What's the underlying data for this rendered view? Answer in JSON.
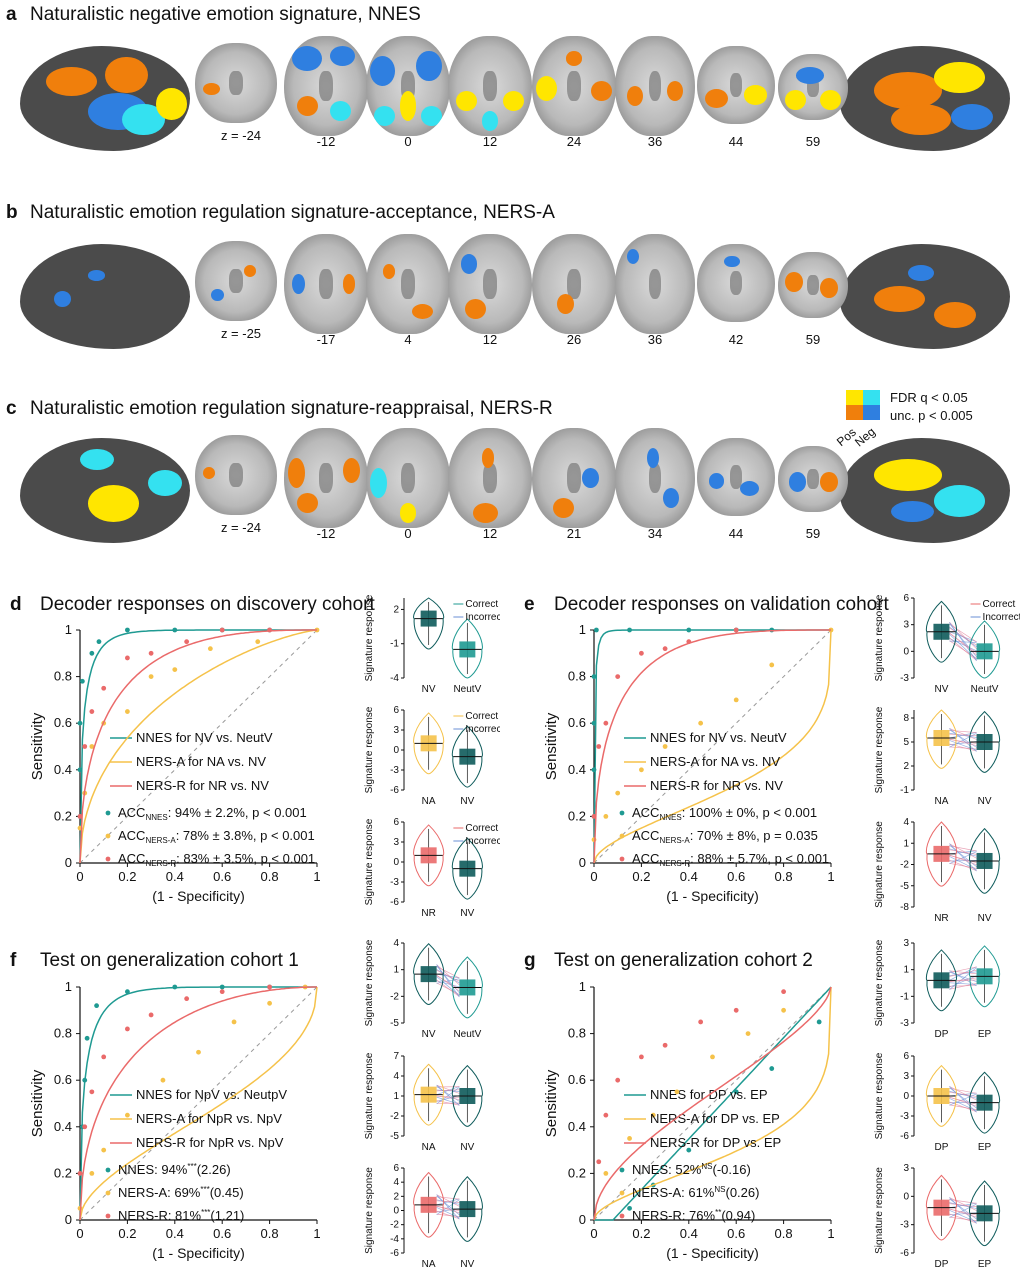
{
  "panels": {
    "a": {
      "label": "a",
      "title": "Naturalistic negative emotion signature, NNES",
      "z": [
        "z = -24",
        "-12",
        "0",
        "12",
        "24",
        "36",
        "44",
        "59"
      ]
    },
    "b": {
      "label": "b",
      "title": "Naturalistic emotion regulation signature-acceptance, NERS-A",
      "z": [
        "z = -25",
        "-17",
        "4",
        "12",
        "26",
        "36",
        "42",
        "59"
      ]
    },
    "c": {
      "label": "c",
      "title": "Naturalistic emotion regulation signature-reappraisal, NERS-R",
      "z": [
        "z = -24",
        "-12",
        "0",
        "12",
        "21",
        "34",
        "44",
        "59"
      ]
    },
    "d": {
      "label": "d",
      "title": "Decoder responses on discovery cohort"
    },
    "e": {
      "label": "e",
      "title": "Decoder responses on validation cohort"
    },
    "f": {
      "label": "f",
      "title": "Test on generalization cohort 1"
    },
    "g": {
      "label": "g",
      "title": "Test on generalization cohort 2"
    }
  },
  "colorbar": {
    "fdr": "FDR q < 0.05",
    "unc": "unc. p < 0.005",
    "pos": "Pos",
    "neg": "Neg",
    "colors": {
      "pos_fdr": "#ffe600",
      "pos_unc": "#f07f0c",
      "neg_fdr": "#34e1f0",
      "neg_unc": "#2f7fe0"
    }
  },
  "colors": {
    "nnes": "#1f9a92",
    "nersa": "#f5c24a",
    "nersr": "#ea6a6a",
    "dark_teal": "#0e5b5b"
  },
  "chart_data": [
    {
      "id": "d",
      "type": "line",
      "xlabel": "(1 - Specificity)",
      "ylabel": "Sensitivity",
      "xlim": [
        0,
        1
      ],
      "ylim": [
        0,
        1
      ],
      "xticks": [
        "0",
        "0.2",
        "0.4",
        "0.6",
        "0.8",
        "1"
      ],
      "yticks": [
        "0",
        "0.2",
        "0.4",
        "0.6",
        "0.8",
        "1"
      ],
      "series": [
        {
          "name": "NNES for NV vs. NeutV",
          "k": 0.015,
          "points": [
            [
              0,
              0.2
            ],
            [
              0,
              0.4
            ],
            [
              0,
              0.6
            ],
            [
              0.01,
              0.78
            ],
            [
              0.05,
              0.9
            ],
            [
              0.08,
              0.95
            ],
            [
              0.2,
              1
            ],
            [
              0.4,
              1
            ],
            [
              0.6,
              1
            ],
            [
              0.8,
              1
            ]
          ]
        },
        {
          "name": "NERS-A for NA vs. NV",
          "k": 0.12,
          "points": [
            [
              0,
              0.15
            ],
            [
              0.02,
              0.3
            ],
            [
              0.05,
              0.5
            ],
            [
              0.1,
              0.6
            ],
            [
              0.2,
              0.65
            ],
            [
              0.3,
              0.8
            ],
            [
              0.4,
              0.83
            ],
            [
              0.55,
              0.92
            ],
            [
              0.75,
              0.95
            ],
            [
              1,
              1
            ]
          ]
        },
        {
          "name": "NERS-R for NR vs. NV",
          "k": 0.06,
          "points": [
            [
              0,
              0.2
            ],
            [
              0.02,
              0.5
            ],
            [
              0.05,
              0.65
            ],
            [
              0.1,
              0.75
            ],
            [
              0.2,
              0.88
            ],
            [
              0.3,
              0.9
            ],
            [
              0.45,
              0.95
            ],
            [
              0.6,
              1
            ],
            [
              0.8,
              1
            ]
          ]
        }
      ],
      "stats": [
        {
          "pre": "ACC",
          "sub": "NNES",
          "post": ": 94% ± 2.2%, p < 0.001"
        },
        {
          "pre": "ACC",
          "sub": "NERS-A",
          "post": ": 78% ± 3.8%, p < 0.001"
        },
        {
          "pre": "ACC",
          "sub": "NERS-R",
          "post": ": 83% ± 3.5%, p < 0.001"
        }
      ]
    },
    {
      "id": "e",
      "type": "line",
      "xlabel": "(1 - Specificity)",
      "ylabel": "Sensitivity",
      "xlim": [
        0,
        1
      ],
      "ylim": [
        0,
        1
      ],
      "xticks": [
        "0",
        "0.2",
        "0.4",
        "0.6",
        "0.8",
        "1"
      ],
      "yticks": [
        "0",
        "0.2",
        "0.4",
        "0.6",
        "0.8",
        "1"
      ],
      "series": [
        {
          "name": "NNES for NV vs. NeutV",
          "k": 0.001,
          "points": [
            [
              0,
              0.2
            ],
            [
              0,
              0.4
            ],
            [
              0,
              0.6
            ],
            [
              0,
              0.8
            ],
            [
              0.01,
              1
            ],
            [
              0.15,
              1
            ],
            [
              0.4,
              1
            ],
            [
              0.6,
              1
            ],
            [
              0.75,
              1
            ]
          ]
        },
        {
          "name": "NERS-A for NA vs. NV",
          "k": 0.6,
          "points": [
            [
              0,
              0.1
            ],
            [
              0.05,
              0.2
            ],
            [
              0.1,
              0.3
            ],
            [
              0.2,
              0.4
            ],
            [
              0.3,
              0.5
            ],
            [
              0.45,
              0.6
            ],
            [
              0.6,
              0.7
            ],
            [
              0.75,
              0.85
            ],
            [
              1,
              1
            ]
          ]
        },
        {
          "name": "NERS-R for NR vs. NV",
          "k": 0.05,
          "points": [
            [
              0,
              0.2
            ],
            [
              0.02,
              0.5
            ],
            [
              0.05,
              0.6
            ],
            [
              0.1,
              0.8
            ],
            [
              0.2,
              0.9
            ],
            [
              0.3,
              0.92
            ],
            [
              0.4,
              0.95
            ],
            [
              0.6,
              1
            ]
          ]
        }
      ],
      "stats": [
        {
          "pre": "ACC",
          "sub": "NNES",
          "post": ": 100% ± 0%, p < 0.001"
        },
        {
          "pre": "ACC",
          "sub": "NERS-A",
          "post": ": 70% ± 8%, p = 0.035"
        },
        {
          "pre": "ACC",
          "sub": "NERS-R",
          "post": ": 88% ± 5.7%, p < 0.001"
        }
      ]
    },
    {
      "id": "f",
      "type": "line",
      "xlabel": "(1 - Specificity)",
      "ylabel": "Sensitivity",
      "xlim": [
        0,
        1
      ],
      "ylim": [
        0,
        1
      ],
      "xticks": [
        "0",
        "0.2",
        "0.4",
        "0.6",
        "0.8",
        "1"
      ],
      "yticks": [
        "0",
        "0.2",
        "0.4",
        "0.6",
        "0.8",
        "1"
      ],
      "series": [
        {
          "name": "NNES for NpV vs. NeutpV",
          "k": 0.02,
          "points": [
            [
              0,
              0.2
            ],
            [
              0.01,
              0.4
            ],
            [
              0.02,
              0.6
            ],
            [
              0.03,
              0.78
            ],
            [
              0.07,
              0.92
            ],
            [
              0.2,
              0.98
            ],
            [
              0.4,
              1
            ],
            [
              0.6,
              1
            ],
            [
              0.8,
              1
            ]
          ]
        },
        {
          "name": "NERS-A for NpR vs. NpV",
          "k": 0.35,
          "points": [
            [
              0,
              0.05
            ],
            [
              0.05,
              0.2
            ],
            [
              0.1,
              0.3
            ],
            [
              0.2,
              0.45
            ],
            [
              0.35,
              0.6
            ],
            [
              0.5,
              0.72
            ],
            [
              0.65,
              0.85
            ],
            [
              0.8,
              0.93
            ],
            [
              0.95,
              1
            ]
          ]
        },
        {
          "name": "NERS-R for NpR vs. NpV",
          "k": 0.08,
          "points": [
            [
              0,
              0.2
            ],
            [
              0.02,
              0.4
            ],
            [
              0.05,
              0.55
            ],
            [
              0.1,
              0.7
            ],
            [
              0.2,
              0.82
            ],
            [
              0.3,
              0.88
            ],
            [
              0.45,
              0.95
            ],
            [
              0.6,
              0.98
            ],
            [
              0.8,
              1
            ]
          ]
        }
      ],
      "stats": [
        {
          "pre": "NNES: 94%",
          "sup": "***",
          "post": "(2.26)"
        },
        {
          "pre": "NERS-A: 69%",
          "sup": "***",
          "post": "(0.45)"
        },
        {
          "pre": "NERS-R: 81%",
          "sup": "***",
          "post": "(1.21)"
        }
      ]
    },
    {
      "id": "g",
      "type": "line",
      "xlabel": "(1 - Specificity)",
      "ylabel": "Sensitivity",
      "xlim": [
        0,
        1
      ],
      "ylim": [
        0,
        1
      ],
      "xticks": [
        "0",
        "0.2",
        "0.4",
        "0.6",
        "0.8",
        "1"
      ],
      "yticks": [
        "0",
        "0.2",
        "0.4",
        "0.6",
        "0.8",
        "1"
      ],
      "series": [
        {
          "name": "NNES for DP vs. EP",
          "k": -0.15,
          "points": [
            [
              0.15,
              0.05
            ],
            [
              0.25,
              0.15
            ],
            [
              0.4,
              0.3
            ],
            [
              0.6,
              0.55
            ],
            [
              0.75,
              0.65
            ],
            [
              0.95,
              0.85
            ]
          ]
        },
        {
          "name": "NERS-A for DP vs. EP",
          "k": 0.7,
          "points": [
            [
              0.05,
              0.2
            ],
            [
              0.15,
              0.35
            ],
            [
              0.25,
              0.45
            ],
            [
              0.35,
              0.55
            ],
            [
              0.5,
              0.7
            ],
            [
              0.65,
              0.8
            ],
            [
              0.8,
              0.9
            ]
          ]
        },
        {
          "name": "NERS-R for DP vs. EP",
          "k": 0.25,
          "points": [
            [
              0.02,
              0.25
            ],
            [
              0.05,
              0.45
            ],
            [
              0.1,
              0.6
            ],
            [
              0.2,
              0.7
            ],
            [
              0.3,
              0.75
            ],
            [
              0.45,
              0.85
            ],
            [
              0.6,
              0.9
            ],
            [
              0.8,
              0.98
            ]
          ]
        }
      ],
      "stats": [
        {
          "pre": "NNES: 52%",
          "sup": "NS",
          "post": "(-0.16)"
        },
        {
          "pre": "NERS-A: 61%",
          "sup": "NS",
          "post": "(0.26)"
        },
        {
          "pre": "NERS-R: 76%",
          "sup": "**",
          "post": "(0.94)"
        }
      ]
    }
  ],
  "violins": [
    {
      "id": "d1",
      "ylabel": "Signature response",
      "yticks": [
        "2",
        "-1",
        "-4"
      ],
      "ymin": -4,
      "ymax": 3,
      "cats": [
        "NV",
        "NeutV"
      ],
      "medians": [
        1.2,
        -1.5
      ],
      "colors": [
        "#0e5b5b",
        "#1f9a92"
      ],
      "legend": [
        "Correct",
        "Incorrect"
      ],
      "legend_color": "#1f9a92"
    },
    {
      "id": "d2",
      "ylabel": "Signature response",
      "yticks": [
        "6",
        "3",
        "0",
        "-3",
        "-6"
      ],
      "ymin": -6,
      "ymax": 6,
      "cats": [
        "NA",
        "NV"
      ],
      "medians": [
        1,
        -1
      ],
      "colors": [
        "#f5c24a",
        "#0e5b5b"
      ],
      "legend": [
        "Correct",
        "Incorrect"
      ],
      "legend_color": "#f5c24a"
    },
    {
      "id": "d3",
      "ylabel": "Signature response",
      "yticks": [
        "6",
        "3",
        "0",
        "-3",
        "-6"
      ],
      "ymin": -6,
      "ymax": 6,
      "cats": [
        "NR",
        "NV"
      ],
      "medians": [
        1,
        -1
      ],
      "colors": [
        "#ea6a6a",
        "#0e5b5b"
      ],
      "legend": [
        "Correct",
        "Incorrect"
      ],
      "legend_color": "#ea6a6a"
    },
    {
      "id": "e1",
      "ylabel": "Signature response",
      "yticks": [
        "6",
        "3",
        "0",
        "-3"
      ],
      "ymin": -3,
      "ymax": 6,
      "cats": [
        "NV",
        "NeutV"
      ],
      "medians": [
        2.2,
        0
      ],
      "colors": [
        "#0e5b5b",
        "#1f9a92"
      ],
      "legend": [
        "Correct",
        "Incorrect"
      ],
      "legend_color": "#ea6a6a",
      "lines": true
    },
    {
      "id": "e2",
      "ylabel": "Signature response",
      "yticks": [
        "8",
        "5",
        "2",
        "-1"
      ],
      "ymin": -1,
      "ymax": 9,
      "cats": [
        "NA",
        "NV"
      ],
      "medians": [
        5.5,
        5
      ],
      "colors": [
        "#f5c24a",
        "#0e5b5b"
      ],
      "lines": true
    },
    {
      "id": "e3",
      "ylabel": "Signature response",
      "yticks": [
        "4",
        "1",
        "-2",
        "-5",
        "-8"
      ],
      "ymin": -8,
      "ymax": 4,
      "cats": [
        "NR",
        "NV"
      ],
      "medians": [
        -0.5,
        -1.5
      ],
      "colors": [
        "#ea6a6a",
        "#0e5b5b"
      ],
      "lines": true
    },
    {
      "id": "f1",
      "ylabel": "Signature response",
      "yticks": [
        "4",
        "1",
        "-2",
        "-5"
      ],
      "ymin": -5,
      "ymax": 4,
      "cats": [
        "NV",
        "NeutV"
      ],
      "medians": [
        0.5,
        -1
      ],
      "colors": [
        "#0e5b5b",
        "#1f9a92"
      ],
      "lines": true
    },
    {
      "id": "f2",
      "ylabel": "Signature response",
      "yticks": [
        "7",
        "4",
        "1",
        "-2",
        "-5"
      ],
      "ymin": -5,
      "ymax": 7,
      "cats": [
        "NA",
        "NV"
      ],
      "medians": [
        1.2,
        1
      ],
      "colors": [
        "#f5c24a",
        "#0e5b5b"
      ],
      "lines": true
    },
    {
      "id": "f3",
      "ylabel": "Signature response",
      "yticks": [
        "6",
        "4",
        "2",
        "0",
        "-2",
        "-4",
        "-6"
      ],
      "ymin": -6,
      "ymax": 6,
      "cats": [
        "NA",
        "NV"
      ],
      "medians": [
        0.8,
        0.2
      ],
      "colors": [
        "#ea6a6a",
        "#0e5b5b"
      ],
      "lines": true
    },
    {
      "id": "g1",
      "ylabel": "Signature response",
      "yticks": [
        "3",
        "1",
        "-1",
        "-3"
      ],
      "ymin": -3,
      "ymax": 3,
      "cats": [
        "DP",
        "EP"
      ],
      "medians": [
        0.2,
        0.5
      ],
      "colors": [
        "#0e5b5b",
        "#1f9a92"
      ],
      "lines": true
    },
    {
      "id": "g2",
      "ylabel": "Signature response",
      "yticks": [
        "6",
        "3",
        "0",
        "-3",
        "-6"
      ],
      "ymin": -6,
      "ymax": 6,
      "cats": [
        "DP",
        "EP"
      ],
      "medians": [
        0,
        -1
      ],
      "colors": [
        "#f5c24a",
        "#0e5b5b"
      ],
      "lines": true
    },
    {
      "id": "g3",
      "ylabel": "Signature response",
      "yticks": [
        "3",
        "0",
        "-3",
        "-6"
      ],
      "ymin": -6,
      "ymax": 3,
      "cats": [
        "DP",
        "EP"
      ],
      "medians": [
        -1.2,
        -1.8
      ],
      "colors": [
        "#ea6a6a",
        "#0e5b5b"
      ],
      "lines": true
    }
  ]
}
